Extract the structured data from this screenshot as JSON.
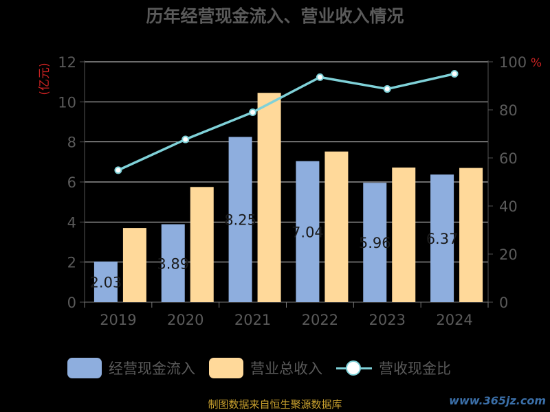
{
  "title": "历年经营现金流入、营业收入情况",
  "colors": {
    "cash_in": "#8eaede",
    "revenue": "#ffd99a",
    "ratio": "#7fd1d8",
    "axis_unit": "#cc2222",
    "text": "#5a5a5a",
    "grid": "#d9d9d9"
  },
  "chart_data": {
    "type": "bar",
    "categories": [
      "2019",
      "2020",
      "2021",
      "2022",
      "2023",
      "2024"
    ],
    "y_left": {
      "unit": "(亿元)",
      "ticks": [
        "0",
        "2",
        "4",
        "6",
        "8",
        "10",
        "12"
      ],
      "range": [
        0,
        12
      ]
    },
    "y_right": {
      "unit": "%",
      "ticks": [
        "0",
        "20",
        "40",
        "60",
        "80",
        "100"
      ],
      "range": [
        0,
        100
      ]
    },
    "series": [
      {
        "name": "经营现金流入",
        "type": "bar",
        "axis": "left",
        "values": [
          2.03,
          3.89,
          8.25,
          7.04,
          5.96,
          6.37
        ],
        "data_labels": [
          "2.03",
          "3.89",
          "8.25",
          "7.04",
          "5.96",
          "6.37"
        ]
      },
      {
        "name": "营业总收入",
        "type": "bar",
        "axis": "left",
        "values": [
          3.7,
          5.75,
          10.45,
          7.52,
          6.72,
          6.7
        ]
      },
      {
        "name": "营收现金比",
        "type": "line",
        "axis": "right",
        "values": [
          54.9,
          67.7,
          79.0,
          93.6,
          88.7,
          95.0
        ]
      }
    ],
    "grid": true,
    "legend_position": "bottom"
  },
  "footer": {
    "source": "制图数据来自恒生聚源数据库",
    "watermark": "www.365jz.com"
  }
}
